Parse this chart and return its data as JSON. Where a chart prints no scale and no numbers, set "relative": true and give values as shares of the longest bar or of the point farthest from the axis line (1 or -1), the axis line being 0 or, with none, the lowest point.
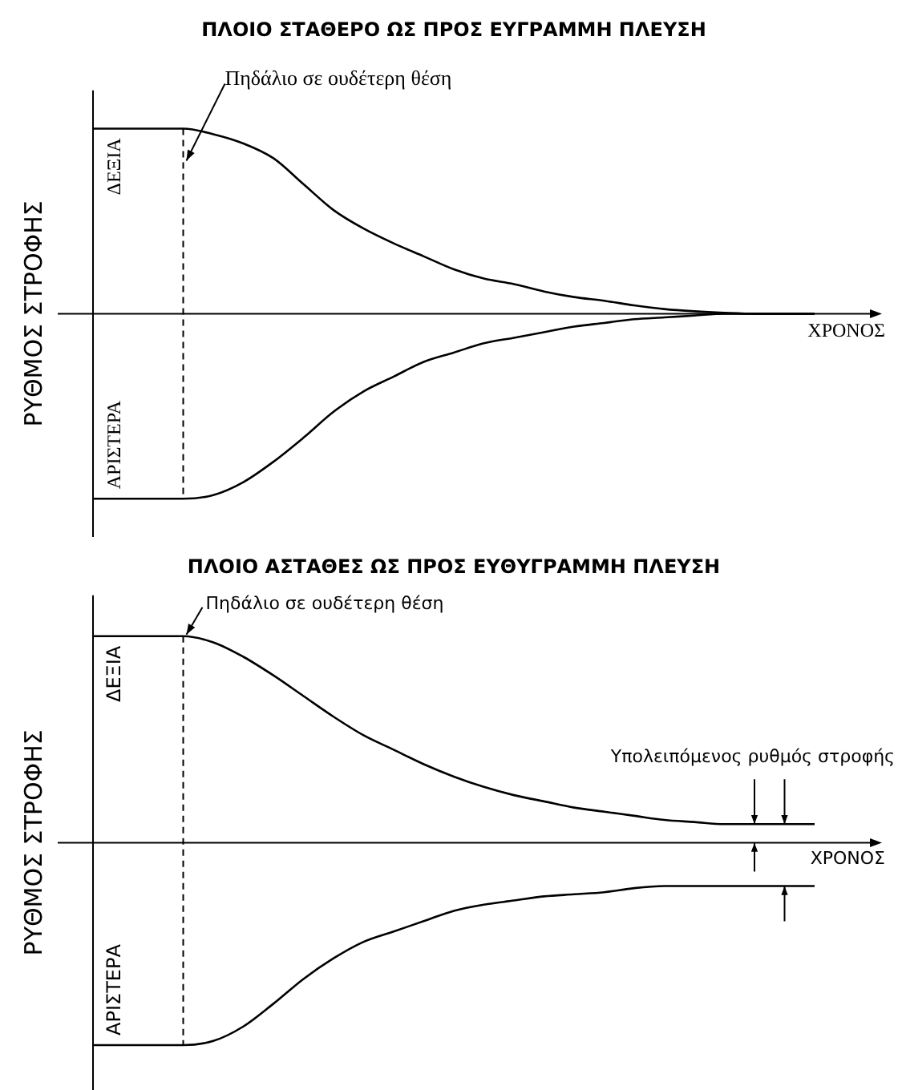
{
  "chart_data": [
    {
      "type": "line",
      "title": "ΠΛΟΙΟ ΣΤΑΘΕΡΟ ΩΣ ΠΡΟΣ ΕΥΓΡΑΜΜΗ ΠΛΕΥΣΗ",
      "xlabel": "ΧΡΟΝΟΣ",
      "ylabel": "ΡΥΘΜΟΣ ΣΤΡΟΦΗΣ",
      "relative": true,
      "legend": false,
      "grid": false,
      "tick_labels": false,
      "marker": "none",
      "categories": [
        null,
        null,
        null,
        null,
        null,
        null,
        null,
        null,
        null,
        null,
        null,
        null,
        null,
        null,
        null,
        null,
        null,
        null,
        null,
        null,
        null,
        null,
        null,
        null,
        null
      ],
      "series": [
        {
          "name": "ΔΕΞΙΑ",
          "color": "#000000",
          "values": [
            1,
            1,
            1,
            1,
            0.97,
            0.92,
            0.84,
            0.7,
            0.56,
            0.46,
            0.38,
            0.31,
            0.24,
            0.19,
            0.16,
            0.12,
            0.09,
            0.07,
            0.045,
            0.025,
            0.013,
            0.005,
            0,
            0,
            0
          ]
        },
        {
          "name": "ΑΡΙΣΤΕΡΑ",
          "color": "#000000",
          "values": [
            -1,
            -1,
            -1,
            -1,
            -0.98,
            -0.91,
            -0.8,
            -0.67,
            -0.53,
            -0.42,
            -0.34,
            -0.26,
            -0.21,
            -0.16,
            -0.13,
            -0.1,
            -0.07,
            -0.05,
            -0.03,
            -0.02,
            -0.01,
            0,
            0,
            0,
            0
          ]
        }
      ],
      "annotations": [
        "Πηδάλιο σε ουδέτερη θέση"
      ]
    },
    {
      "type": "line",
      "title": "ΠΛΟΙΟ ΑΣΤΑΘΕΣ ΩΣ ΠΡΟΣ ΕΥΘΥΓΡΑΜΜΗ ΠΛΕΥΣΗ",
      "xlabel": "ΧΡΟΝΟΣ",
      "ylabel": "ΡΥΘΜΟΣ ΣΤΡΟΦΗΣ",
      "relative": true,
      "legend": false,
      "grid": false,
      "tick_labels": false,
      "marker": "none",
      "categories": [
        null,
        null,
        null,
        null,
        null,
        null,
        null,
        null,
        null,
        null,
        null,
        null,
        null,
        null,
        null,
        null,
        null,
        null,
        null,
        null,
        null,
        null,
        null,
        null,
        null
      ],
      "series": [
        {
          "name": "ΔΕΞΙΑ",
          "color": "#000000",
          "values": [
            1,
            1,
            1,
            1,
            0.97,
            0.9,
            0.81,
            0.71,
            0.61,
            0.52,
            0.45,
            0.38,
            0.32,
            0.27,
            0.23,
            0.2,
            0.17,
            0.15,
            0.13,
            0.11,
            0.1,
            0.09,
            0.09,
            0.09,
            0.09
          ]
        },
        {
          "name": "ΑΡΙΣΤΕΡΑ",
          "color": "#000000",
          "values": [
            -0.98,
            -0.98,
            -0.98,
            -0.98,
            -0.96,
            -0.89,
            -0.78,
            -0.66,
            -0.56,
            -0.48,
            -0.43,
            -0.38,
            -0.33,
            -0.3,
            -0.28,
            -0.26,
            -0.25,
            -0.24,
            -0.22,
            -0.21,
            -0.21,
            -0.21,
            -0.21,
            -0.21,
            -0.21
          ]
        }
      ],
      "annotations": [
        "Πηδάλιο σε ουδέτερη θέση",
        "Υπολειπόμενος ρυθμός στροφής"
      ]
    }
  ]
}
